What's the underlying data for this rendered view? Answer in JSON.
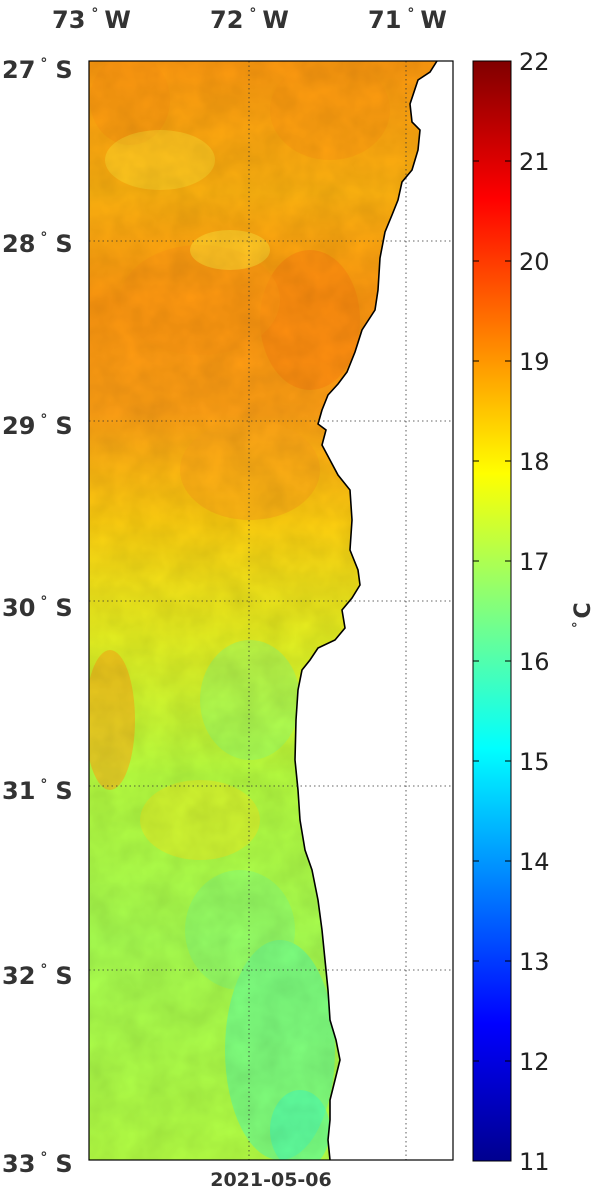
{
  "map": {
    "date": "2021-05-06",
    "lon_labels": [
      {
        "deg": "73",
        "hem": "W",
        "value": -73
      },
      {
        "deg": "72",
        "hem": "W",
        "value": -72
      },
      {
        "deg": "71",
        "hem": "W",
        "value": -71
      }
    ],
    "lat_labels": [
      {
        "deg": "27",
        "hem": "S",
        "value": -27
      },
      {
        "deg": "28",
        "hem": "S",
        "value": -28
      },
      {
        "deg": "29",
        "hem": "S",
        "value": -29
      },
      {
        "deg": "30",
        "hem": "S",
        "value": -30
      },
      {
        "deg": "31",
        "hem": "S",
        "value": -31
      },
      {
        "deg": "32",
        "hem": "S",
        "value": -32
      },
      {
        "deg": "33",
        "hem": "S",
        "value": -33
      }
    ],
    "lon_range": [
      -73,
      -70.7
    ],
    "lat_range": [
      -33,
      -27
    ],
    "land_color": "#ffffff",
    "coast_color": "#000000"
  },
  "colorbar": {
    "unit_deg": "°",
    "unit": "C",
    "range": [
      11,
      22
    ],
    "ticks": [
      "22",
      "21",
      "20",
      "19",
      "18",
      "17",
      "16",
      "15",
      "14",
      "13",
      "12",
      "11"
    ],
    "colormap": "jet"
  }
}
